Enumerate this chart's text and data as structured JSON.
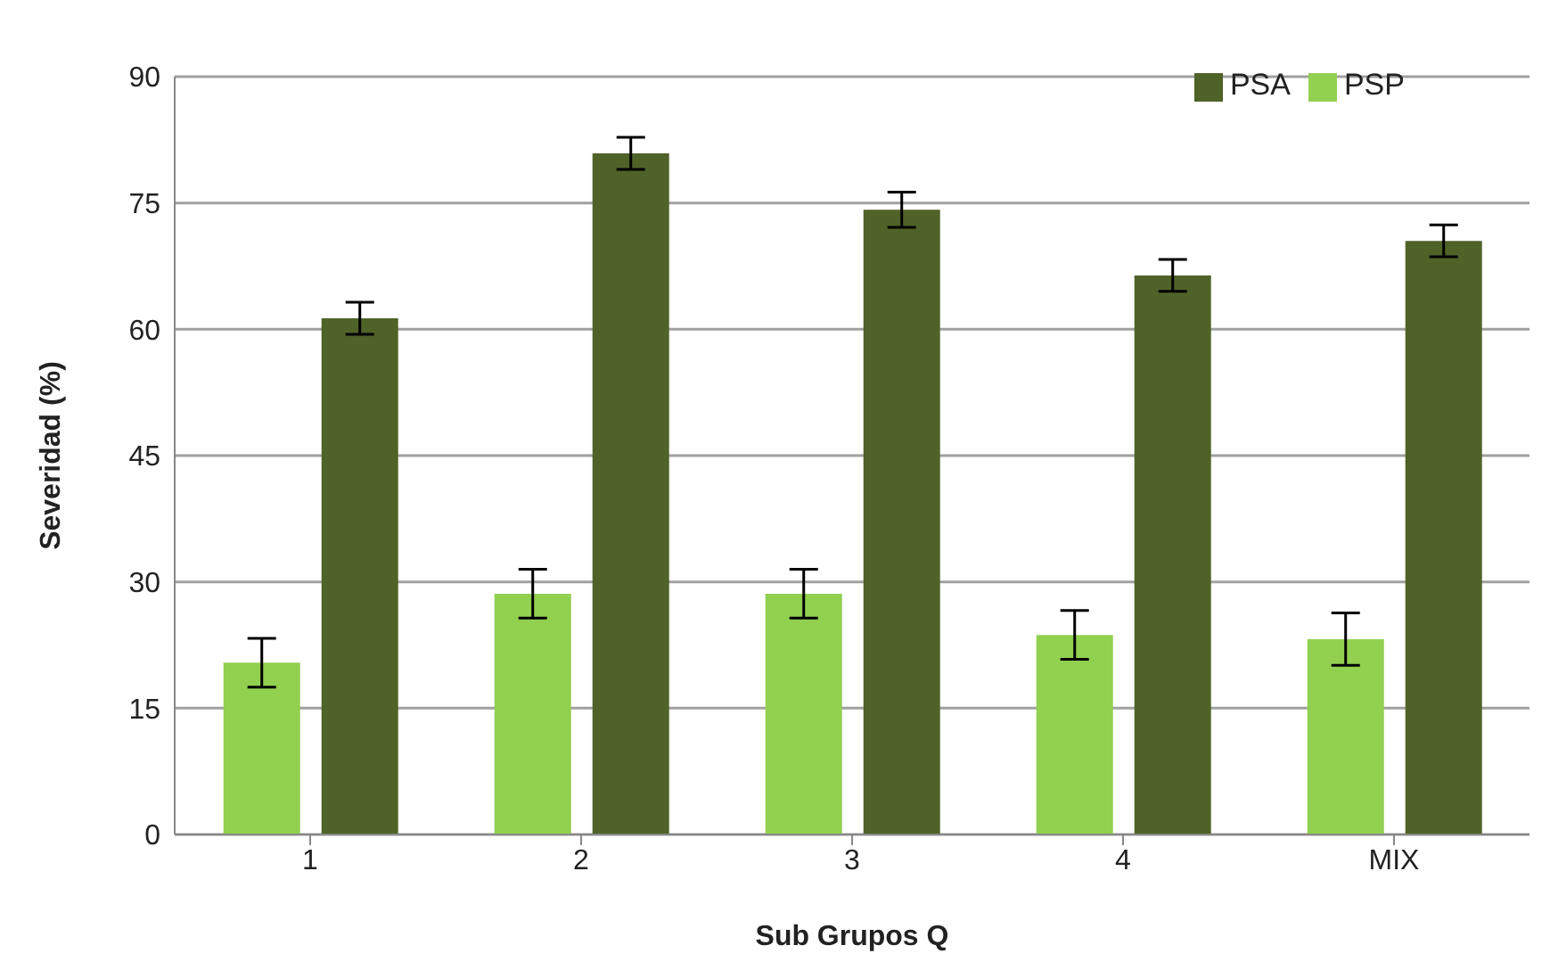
{
  "chart_data": {
    "type": "bar",
    "xlabel": "Sub Grupos Q",
    "ylabel": "Severidad (%)",
    "categories": [
      "1",
      "2",
      "3",
      "4",
      "MIX"
    ],
    "series": [
      {
        "name": "PSP",
        "color": "#92d050",
        "values": [
          20.4,
          28.6,
          28.6,
          23.7,
          23.2
        ],
        "errors": [
          2.9,
          2.9,
          2.9,
          2.9,
          3.1
        ]
      },
      {
        "name": "PSA",
        "color": "#4f6228",
        "values": [
          61.3,
          80.9,
          74.2,
          66.4,
          70.5
        ],
        "errors": [
          1.9,
          1.9,
          2.1,
          1.9,
          1.9
        ]
      }
    ],
    "ylim": [
      0,
      90
    ],
    "yticks": [
      0,
      15,
      30,
      45,
      60,
      75,
      90
    ],
    "grid": "y",
    "legend": "top right"
  }
}
